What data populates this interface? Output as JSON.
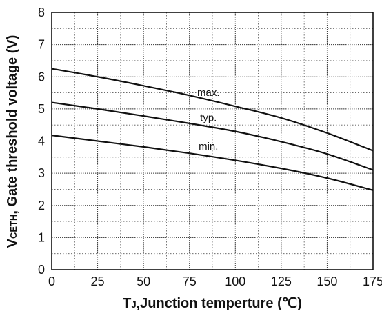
{
  "chart_data": {
    "type": "line",
    "xlabel": {
      "prefix": "T",
      "subscript": "J",
      "rest": ",Junction temperture (℃)"
    },
    "ylabel": {
      "prefix": "V",
      "subscript": "CETH",
      "rest": ", Gate threshold voltage (V)"
    },
    "xlim": [
      0,
      175
    ],
    "ylim": [
      0,
      8
    ],
    "xticks": [
      0,
      25,
      50,
      75,
      100,
      125,
      150,
      175
    ],
    "yticks": [
      0,
      1,
      2,
      3,
      4,
      5,
      6,
      7,
      8
    ],
    "grid": true,
    "series": [
      {
        "name": "max.",
        "x": [
          0,
          25,
          50,
          75,
          100,
          125,
          150,
          175
        ],
        "y": [
          6.25,
          6.0,
          5.72,
          5.42,
          5.08,
          4.72,
          4.25,
          3.7
        ]
      },
      {
        "name": "typ.",
        "x": [
          0,
          25,
          50,
          75,
          100,
          125,
          150,
          175
        ],
        "y": [
          5.2,
          5.0,
          4.78,
          4.55,
          4.3,
          3.98,
          3.6,
          3.1
        ]
      },
      {
        "name": "min.",
        "x": [
          0,
          25,
          50,
          75,
          100,
          125,
          150,
          175
        ],
        "y": [
          4.18,
          4.0,
          3.82,
          3.62,
          3.4,
          3.15,
          2.85,
          2.47
        ]
      }
    ]
  }
}
